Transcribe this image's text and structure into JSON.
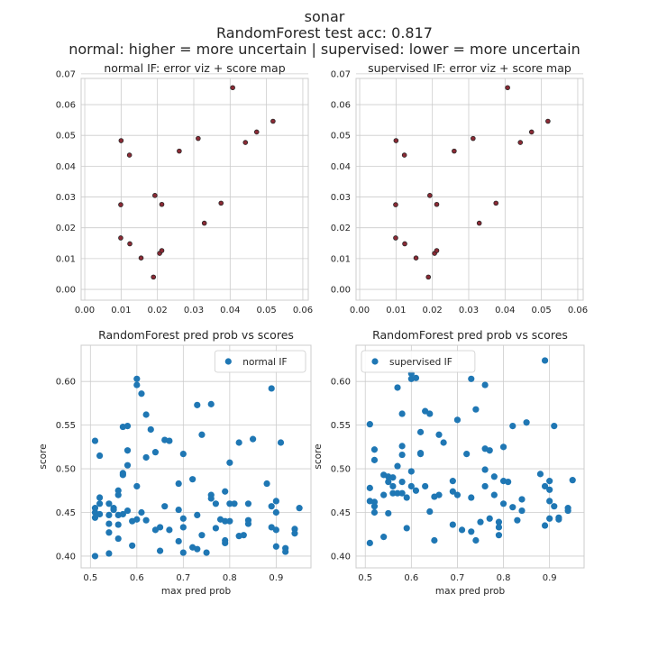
{
  "figure": {
    "title_lines": [
      "sonar",
      "RandomForest test acc: 0.817",
      "normal: higher = more uncertain | supervised: lower = more uncertain"
    ],
    "background": "#ffffff",
    "grid_color": "#cccccc",
    "spine_color": "#cccccc",
    "text_color": "#262626"
  },
  "chart_data": [
    {
      "type": "scatter",
      "title": "normal IF: error viz + score map",
      "xlabel": "",
      "ylabel": "",
      "xlim": [
        -0.001,
        0.0615
      ],
      "ylim": [
        -0.0035,
        0.0685
      ],
      "xticks": [
        "0.00",
        "0.01",
        "0.02",
        "0.03",
        "0.04",
        "0.05",
        "0.06"
      ],
      "yticks": [
        "0.00",
        "0.01",
        "0.02",
        "0.03",
        "0.04",
        "0.05",
        "0.06",
        "0.07"
      ],
      "grid": true,
      "marker_color": "#8b2a35",
      "marker_edge": "#262626",
      "series": [
        {
          "points": [
            [
              0.01,
              0.0483
            ],
            [
              0.0123,
              0.0436
            ],
            [
              0.0099,
              0.0275
            ],
            [
              0.0099,
              0.0167
            ],
            [
              0.0124,
              0.0148
            ],
            [
              0.0155,
              0.0102
            ],
            [
              0.0189,
              0.004
            ],
            [
              0.0193,
              0.0305
            ],
            [
              0.0206,
              0.0117
            ],
            [
              0.0212,
              0.0126
            ],
            [
              0.0212,
              0.0276
            ],
            [
              0.026,
              0.0449
            ],
            [
              0.0312,
              0.049
            ],
            [
              0.0329,
              0.0215
            ],
            [
              0.0375,
              0.028
            ],
            [
              0.0407,
              0.0655
            ],
            [
              0.0442,
              0.0477
            ],
            [
              0.0473,
              0.0511
            ],
            [
              0.0518,
              0.0546
            ]
          ]
        }
      ]
    },
    {
      "type": "scatter",
      "title": "supervised IF: error viz + score map",
      "xlabel": "",
      "ylabel": "",
      "xlim": [
        -0.001,
        0.0615
      ],
      "ylim": [
        -0.0035,
        0.0685
      ],
      "xticks": [
        "0.00",
        "0.01",
        "0.02",
        "0.03",
        "0.04",
        "0.05",
        "0.06"
      ],
      "yticks": [
        "0.00",
        "0.01",
        "0.02",
        "0.03",
        "0.04",
        "0.05",
        "0.06",
        "0.07"
      ],
      "grid": true,
      "marker_color": "#8b2a35",
      "marker_edge": "#262626",
      "series": [
        {
          "points": [
            [
              0.01,
              0.0483
            ],
            [
              0.0123,
              0.0436
            ],
            [
              0.0099,
              0.0275
            ],
            [
              0.0099,
              0.0167
            ],
            [
              0.0124,
              0.0148
            ],
            [
              0.0155,
              0.0102
            ],
            [
              0.0189,
              0.004
            ],
            [
              0.0193,
              0.0305
            ],
            [
              0.0206,
              0.0117
            ],
            [
              0.0212,
              0.0126
            ],
            [
              0.0212,
              0.0276
            ],
            [
              0.026,
              0.0449
            ],
            [
              0.0312,
              0.049
            ],
            [
              0.0329,
              0.0215
            ],
            [
              0.0375,
              0.028
            ],
            [
              0.0407,
              0.0655
            ],
            [
              0.0442,
              0.0477
            ],
            [
              0.0473,
              0.0511
            ],
            [
              0.0518,
              0.0546
            ]
          ]
        }
      ]
    },
    {
      "type": "scatter",
      "title": "RandomForest pred prob vs scores",
      "xlabel": "max pred prob",
      "ylabel": "score",
      "xlim": [
        0.48,
        0.975
      ],
      "ylim": [
        0.3865,
        0.6415
      ],
      "xticks": [
        "0.5",
        "0.6",
        "0.7",
        "0.8",
        "0.9"
      ],
      "yticks": [
        "0.40",
        "0.45",
        "0.50",
        "0.55",
        "0.60"
      ],
      "grid": true,
      "legend_position": "upper right",
      "marker_color": "#1f77b4",
      "series": [
        {
          "name": "normal IF",
          "points": [
            [
              0.51,
              0.532
            ],
            [
              0.52,
              0.515
            ],
            [
              0.51,
              0.455
            ],
            [
              0.51,
              0.45
            ],
            [
              0.51,
              0.444
            ],
            [
              0.52,
              0.467
            ],
            [
              0.52,
              0.46
            ],
            [
              0.52,
              0.448
            ],
            [
              0.51,
              0.4
            ],
            [
              0.54,
              0.46
            ],
            [
              0.54,
              0.447
            ],
            [
              0.54,
              0.437
            ],
            [
              0.54,
              0.427
            ],
            [
              0.54,
              0.403
            ],
            [
              0.55,
              0.455
            ],
            [
              0.55,
              0.453
            ],
            [
              0.56,
              0.475
            ],
            [
              0.56,
              0.47
            ],
            [
              0.56,
              0.447
            ],
            [
              0.56,
              0.436
            ],
            [
              0.56,
              0.42
            ],
            [
              0.57,
              0.548
            ],
            [
              0.57,
              0.495
            ],
            [
              0.57,
              0.493
            ],
            [
              0.57,
              0.448
            ],
            [
              0.58,
              0.549
            ],
            [
              0.58,
              0.521
            ],
            [
              0.58,
              0.504
            ],
            [
              0.58,
              0.452
            ],
            [
              0.59,
              0.44
            ],
            [
              0.59,
              0.412
            ],
            [
              0.6,
              0.603
            ],
            [
              0.6,
              0.596
            ],
            [
              0.6,
              0.48
            ],
            [
              0.6,
              0.442
            ],
            [
              0.61,
              0.586
            ],
            [
              0.61,
              0.45
            ],
            [
              0.62,
              0.562
            ],
            [
              0.62,
              0.513
            ],
            [
              0.62,
              0.441
            ],
            [
              0.63,
              0.545
            ],
            [
              0.64,
              0.519
            ],
            [
              0.64,
              0.43
            ],
            [
              0.65,
              0.433
            ],
            [
              0.65,
              0.406
            ],
            [
              0.66,
              0.533
            ],
            [
              0.66,
              0.457
            ],
            [
              0.67,
              0.532
            ],
            [
              0.67,
              0.43
            ],
            [
              0.69,
              0.483
            ],
            [
              0.69,
              0.453
            ],
            [
              0.69,
              0.417
            ],
            [
              0.7,
              0.517
            ],
            [
              0.7,
              0.443
            ],
            [
              0.7,
              0.433
            ],
            [
              0.7,
              0.404
            ],
            [
              0.72,
              0.488
            ],
            [
              0.72,
              0.41
            ],
            [
              0.73,
              0.573
            ],
            [
              0.73,
              0.447
            ],
            [
              0.73,
              0.408
            ],
            [
              0.74,
              0.539
            ],
            [
              0.74,
              0.424
            ],
            [
              0.75,
              0.404
            ],
            [
              0.76,
              0.574
            ],
            [
              0.76,
              0.47
            ],
            [
              0.76,
              0.466
            ],
            [
              0.77,
              0.46
            ],
            [
              0.77,
              0.432
            ],
            [
              0.78,
              0.442
            ],
            [
              0.79,
              0.474
            ],
            [
              0.79,
              0.44
            ],
            [
              0.79,
              0.418
            ],
            [
              0.79,
              0.415
            ],
            [
              0.8,
              0.507
            ],
            [
              0.8,
              0.46
            ],
            [
              0.8,
              0.44
            ],
            [
              0.81,
              0.46
            ],
            [
              0.82,
              0.53
            ],
            [
              0.82,
              0.423
            ],
            [
              0.83,
              0.424
            ],
            [
              0.84,
              0.46
            ],
            [
              0.84,
              0.441
            ],
            [
              0.84,
              0.437
            ],
            [
              0.85,
              0.534
            ],
            [
              0.88,
              0.483
            ],
            [
              0.89,
              0.592
            ],
            [
              0.89,
              0.457
            ],
            [
              0.89,
              0.433
            ],
            [
              0.9,
              0.463
            ],
            [
              0.9,
              0.45
            ],
            [
              0.9,
              0.43
            ],
            [
              0.9,
              0.411
            ],
            [
              0.91,
              0.53
            ],
            [
              0.92,
              0.409
            ],
            [
              0.92,
              0.405
            ],
            [
              0.94,
              0.431
            ],
            [
              0.94,
              0.426
            ],
            [
              0.95,
              0.455
            ]
          ]
        }
      ]
    },
    {
      "type": "scatter",
      "title": "RandomForest pred prob vs scores",
      "xlabel": "max pred prob",
      "ylabel": "score",
      "xlim": [
        0.48,
        0.975
      ],
      "ylim": [
        0.3865,
        0.6415
      ],
      "xticks": [
        "0.5",
        "0.6",
        "0.7",
        "0.8",
        "0.9"
      ],
      "yticks": [
        "0.40",
        "0.45",
        "0.50",
        "0.55",
        "0.60"
      ],
      "grid": true,
      "legend_position": "upper left",
      "marker_color": "#1f77b4",
      "series": [
        {
          "name": "supervised IF",
          "points": [
            [
              0.51,
              0.551
            ],
            [
              0.51,
              0.478
            ],
            [
              0.51,
              0.463
            ],
            [
              0.51,
              0.415
            ],
            [
              0.52,
              0.522
            ],
            [
              0.52,
              0.51
            ],
            [
              0.52,
              0.462
            ],
            [
              0.52,
              0.457
            ],
            [
              0.52,
              0.45
            ],
            [
              0.54,
              0.493
            ],
            [
              0.54,
              0.47
            ],
            [
              0.54,
              0.422
            ],
            [
              0.55,
              0.491
            ],
            [
              0.55,
              0.485
            ],
            [
              0.55,
              0.449
            ],
            [
              0.56,
              0.49
            ],
            [
              0.56,
              0.48
            ],
            [
              0.56,
              0.472
            ],
            [
              0.57,
              0.593
            ],
            [
              0.57,
              0.503
            ],
            [
              0.57,
              0.472
            ],
            [
              0.58,
              0.563
            ],
            [
              0.58,
              0.526
            ],
            [
              0.58,
              0.516
            ],
            [
              0.58,
              0.485
            ],
            [
              0.58,
              0.472
            ],
            [
              0.59,
              0.467
            ],
            [
              0.59,
              0.432
            ],
            [
              0.6,
              0.609
            ],
            [
              0.6,
              0.603
            ],
            [
              0.6,
              0.497
            ],
            [
              0.6,
              0.48
            ],
            [
              0.61,
              0.604
            ],
            [
              0.61,
              0.475
            ],
            [
              0.62,
              0.542
            ],
            [
              0.62,
              0.518
            ],
            [
              0.62,
              0.517
            ],
            [
              0.63,
              0.566
            ],
            [
              0.63,
              0.48
            ],
            [
              0.64,
              0.563
            ],
            [
              0.64,
              0.451
            ],
            [
              0.65,
              0.418
            ],
            [
              0.65,
              0.468
            ],
            [
              0.66,
              0.539
            ],
            [
              0.66,
              0.47
            ],
            [
              0.67,
              0.53
            ],
            [
              0.69,
              0.486
            ],
            [
              0.69,
              0.474
            ],
            [
              0.69,
              0.436
            ],
            [
              0.7,
              0.556
            ],
            [
              0.7,
              0.47
            ],
            [
              0.71,
              0.43
            ],
            [
              0.72,
              0.517
            ],
            [
              0.73,
              0.603
            ],
            [
              0.73,
              0.467
            ],
            [
              0.73,
              0.428
            ],
            [
              0.74,
              0.568
            ],
            [
              0.74,
              0.418
            ],
            [
              0.75,
              0.439
            ],
            [
              0.76,
              0.596
            ],
            [
              0.76,
              0.523
            ],
            [
              0.76,
              0.499
            ],
            [
              0.76,
              0.48
            ],
            [
              0.77,
              0.521
            ],
            [
              0.77,
              0.443
            ],
            [
              0.78,
              0.491
            ],
            [
              0.78,
              0.47
            ],
            [
              0.79,
              0.439
            ],
            [
              0.79,
              0.433
            ],
            [
              0.79,
              0.424
            ],
            [
              0.8,
              0.525
            ],
            [
              0.8,
              0.486
            ],
            [
              0.8,
              0.46
            ],
            [
              0.81,
              0.485
            ],
            [
              0.82,
              0.549
            ],
            [
              0.82,
              0.456
            ],
            [
              0.83,
              0.441
            ],
            [
              0.84,
              0.465
            ],
            [
              0.84,
              0.452
            ],
            [
              0.85,
              0.553
            ],
            [
              0.88,
              0.494
            ],
            [
              0.89,
              0.624
            ],
            [
              0.89,
              0.48
            ],
            [
              0.89,
              0.435
            ],
            [
              0.9,
              0.486
            ],
            [
              0.9,
              0.476
            ],
            [
              0.9,
              0.463
            ],
            [
              0.9,
              0.443
            ],
            [
              0.91,
              0.549
            ],
            [
              0.91,
              0.457
            ],
            [
              0.92,
              0.444
            ],
            [
              0.92,
              0.442
            ],
            [
              0.94,
              0.455
            ],
            [
              0.94,
              0.452
            ],
            [
              0.95,
              0.487
            ]
          ]
        }
      ]
    }
  ]
}
